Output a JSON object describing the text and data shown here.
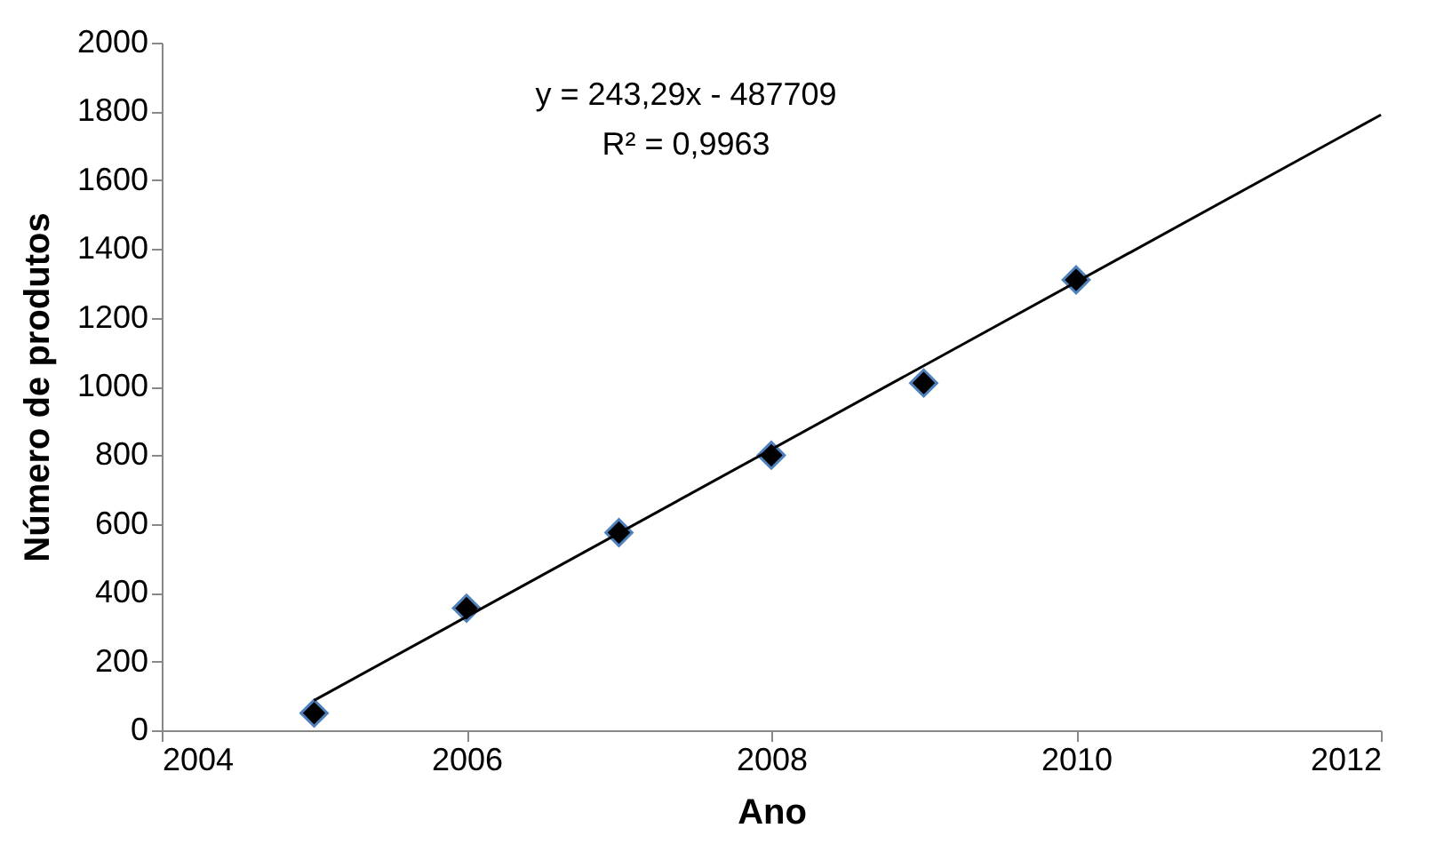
{
  "chart_data": {
    "type": "scatter",
    "xlabel": "Ano",
    "ylabel": "Número de produtos",
    "series": [
      {
        "color": "#000000",
        "x": [
          2005,
          2006,
          2007,
          2008,
          2009,
          2010
        ],
        "values": [
          50,
          355,
          575,
          800,
          1010,
          1310
        ],
        "marker": "diamond"
      },
      {
        "type": "line",
        "color": "#000000",
        "x": [
          2005,
          2012
        ],
        "values": [
          87,
          1790
        ],
        "marker": "none",
        "line_style": "solid"
      }
    ],
    "xlim": [
      2004,
      2012
    ],
    "xticks": [
      2004,
      2006,
      2008,
      2010,
      2012
    ],
    "ylim": [
      0,
      2000
    ],
    "yticks": [
      0,
      200,
      400,
      600,
      800,
      1000,
      1200,
      1400,
      1600,
      1800,
      2000
    ],
    "grid": false,
    "annotations": [
      "y = 243,29x - 487709",
      "R² = 0,9963"
    ]
  }
}
